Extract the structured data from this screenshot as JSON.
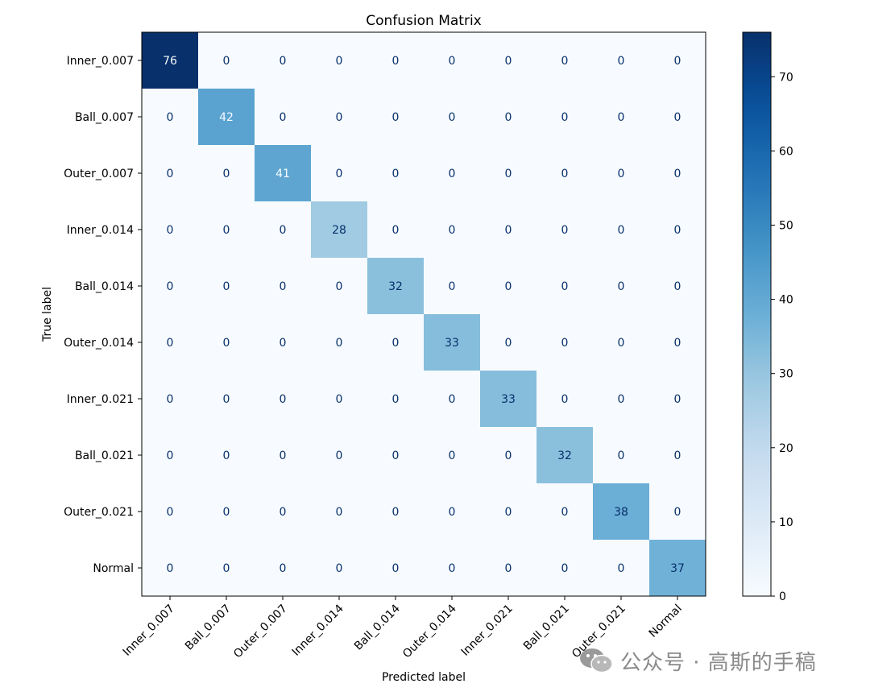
{
  "chart_data": {
    "type": "heatmap",
    "title": "Confusion Matrix",
    "xlabel": "Predicted label",
    "ylabel": "True label",
    "x_categories": [
      "Inner_0.007",
      "Ball_0.007",
      "Outer_0.007",
      "Inner_0.014",
      "Ball_0.014",
      "Outer_0.014",
      "Inner_0.021",
      "Ball_0.021",
      "Outer_0.021",
      "Normal"
    ],
    "y_categories": [
      "Inner_0.007",
      "Ball_0.007",
      "Outer_0.007",
      "Inner_0.014",
      "Ball_0.014",
      "Outer_0.014",
      "Inner_0.021",
      "Ball_0.021",
      "Outer_0.021",
      "Normal"
    ],
    "values": [
      [
        76,
        0,
        0,
        0,
        0,
        0,
        0,
        0,
        0,
        0
      ],
      [
        0,
        42,
        0,
        0,
        0,
        0,
        0,
        0,
        0,
        0
      ],
      [
        0,
        0,
        41,
        0,
        0,
        0,
        0,
        0,
        0,
        0
      ],
      [
        0,
        0,
        0,
        28,
        0,
        0,
        0,
        0,
        0,
        0
      ],
      [
        0,
        0,
        0,
        0,
        32,
        0,
        0,
        0,
        0,
        0
      ],
      [
        0,
        0,
        0,
        0,
        0,
        33,
        0,
        0,
        0,
        0
      ],
      [
        0,
        0,
        0,
        0,
        0,
        0,
        33,
        0,
        0,
        0
      ],
      [
        0,
        0,
        0,
        0,
        0,
        0,
        0,
        32,
        0,
        0
      ],
      [
        0,
        0,
        0,
        0,
        0,
        0,
        0,
        0,
        38,
        0
      ],
      [
        0,
        0,
        0,
        0,
        0,
        0,
        0,
        0,
        0,
        37
      ]
    ],
    "colormap": "Blues",
    "colorbar": {
      "min": 0,
      "max": 76,
      "ticks": [
        0,
        10,
        20,
        30,
        40,
        50,
        60,
        70
      ]
    },
    "grid": false
  },
  "watermark": {
    "text": "公众号 · 高斯的手稿",
    "icon": "wechat-icon"
  }
}
